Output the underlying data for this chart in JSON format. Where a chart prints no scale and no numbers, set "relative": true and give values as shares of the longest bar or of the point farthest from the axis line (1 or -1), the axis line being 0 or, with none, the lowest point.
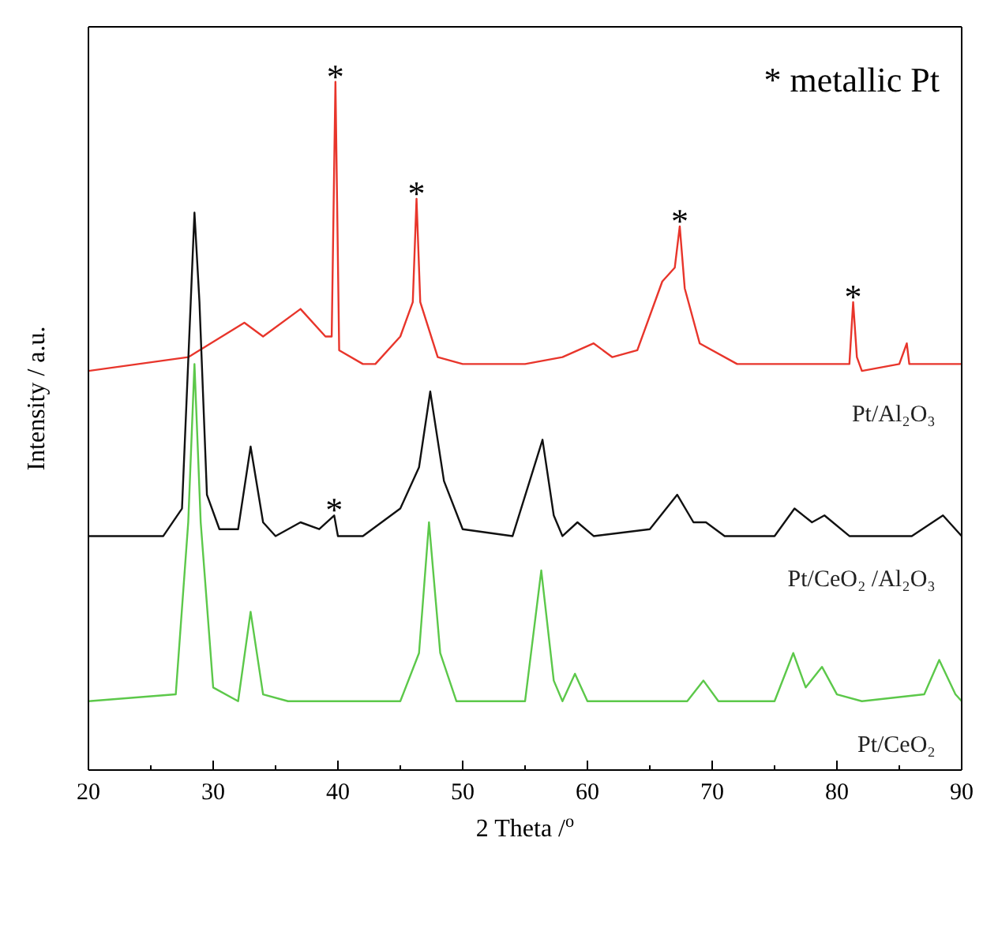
{
  "chart_data": {
    "type": "line",
    "relative": true,
    "xlabel": "2 Theta /$^{o}$",
    "ylabel": "Intensity / a.u.",
    "xlim": [
      20,
      90
    ],
    "xticks": [
      20,
      30,
      40,
      50,
      60,
      70,
      80,
      90
    ],
    "tick_labels": "x",
    "grid": false,
    "legend": false,
    "marker": "none",
    "line_style": "solid",
    "annotations": [
      "* metallic Pt",
      {
        "text": "*",
        "x": 39.8,
        "y": 1.0
      },
      {
        "text": "*",
        "x": 46.3,
        "y": 0.83
      },
      {
        "text": "*",
        "x": 67.4,
        "y": 0.79
      },
      {
        "text": "*",
        "x": 81.3,
        "y": 0.68
      },
      {
        "text": "*",
        "x": 39.7,
        "y": 0.37
      }
    ],
    "series": [
      {
        "name": "Pt/Al₂O₃",
        "color": "#e8352b",
        "x": [
          20,
          28,
          32.5,
          34,
          37,
          39,
          39.5,
          39.8,
          40.1,
          42,
          43,
          45,
          46,
          46.3,
          46.6,
          48,
          50,
          55,
          58,
          60.5,
          62,
          64,
          66,
          67,
          67.4,
          67.8,
          69,
          72,
          80,
          81,
          81.3,
          81.6,
          82,
          85,
          85.6,
          85.8,
          90
        ],
        "values": [
          0.58,
          0.6,
          0.65,
          0.63,
          0.67,
          0.63,
          0.63,
          1.0,
          0.61,
          0.59,
          0.59,
          0.63,
          0.68,
          0.83,
          0.68,
          0.6,
          0.59,
          0.59,
          0.6,
          0.62,
          0.6,
          0.61,
          0.71,
          0.73,
          0.79,
          0.7,
          0.62,
          0.59,
          0.59,
          0.59,
          0.68,
          0.6,
          0.58,
          0.59,
          0.62,
          0.59,
          0.59
        ]
      },
      {
        "name": "Pt/CeO₂ /Al₂O₃",
        "color": "#111111",
        "x": [
          20,
          26,
          27.5,
          28.2,
          28.5,
          28.9,
          29.5,
          30.5,
          32,
          33,
          34,
          35,
          37,
          38.5,
          39.7,
          40,
          42,
          45,
          46.5,
          47.4,
          48.5,
          50,
          54,
          56.4,
          57.3,
          58,
          59.2,
          60.5,
          65,
          67.2,
          68.5,
          69.5,
          71,
          75,
          76.6,
          78,
          79,
          81,
          86,
          88.5,
          90
        ],
        "values": [
          0.34,
          0.34,
          0.38,
          0.68,
          0.81,
          0.68,
          0.4,
          0.35,
          0.35,
          0.47,
          0.36,
          0.34,
          0.36,
          0.35,
          0.37,
          0.34,
          0.34,
          0.38,
          0.44,
          0.55,
          0.42,
          0.35,
          0.34,
          0.48,
          0.37,
          0.34,
          0.36,
          0.34,
          0.35,
          0.4,
          0.36,
          0.36,
          0.34,
          0.34,
          0.38,
          0.36,
          0.37,
          0.34,
          0.34,
          0.37,
          0.34
        ]
      },
      {
        "name": "Pt/CeO₂",
        "color": "#5cc84a",
        "x": [
          20,
          27,
          28,
          28.5,
          29,
          30,
          32,
          33,
          34,
          36,
          45,
          46.5,
          47.3,
          48.2,
          49.5,
          55,
          56.3,
          57.3,
          58,
          59,
          60,
          68,
          69.3,
          70.5,
          75,
          76.5,
          77.5,
          78.8,
          80,
          82,
          87,
          88.2,
          89.5,
          90
        ],
        "values": [
          0.1,
          0.11,
          0.36,
          0.59,
          0.36,
          0.12,
          0.1,
          0.23,
          0.11,
          0.1,
          0.1,
          0.17,
          0.36,
          0.17,
          0.1,
          0.1,
          0.29,
          0.13,
          0.1,
          0.14,
          0.1,
          0.1,
          0.13,
          0.1,
          0.1,
          0.17,
          0.12,
          0.15,
          0.11,
          0.1,
          0.11,
          0.16,
          0.11,
          0.1
        ]
      }
    ]
  }
}
